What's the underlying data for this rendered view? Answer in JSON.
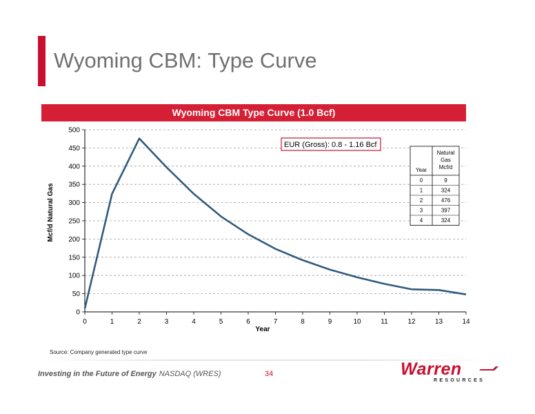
{
  "slide": {
    "title": "Wyoming CBM: Type Curve",
    "source_note": "Source: Company generated type curve",
    "footer": {
      "tagline": "Investing in the Future of Energy",
      "ticker": "NASDAQ (WRES)",
      "page_number": "34",
      "logo_word": "Warren",
      "logo_sub": "RESOURCES"
    },
    "accent_color": "#c8102e"
  },
  "chart_data": {
    "type": "line",
    "title": "Wyoming CBM Type Curve (1.0 Bcf)",
    "xlabel": "Year",
    "ylabel": "Mcf/d Natural Gas",
    "xlim": [
      0,
      14
    ],
    "ylim": [
      0,
      500
    ],
    "xticks": [
      "0",
      "1",
      "2",
      "3",
      "4",
      "5",
      "6",
      "7",
      "8",
      "9",
      "10",
      "11",
      "12",
      "13",
      "14"
    ],
    "yticks": [
      "0",
      "50",
      "100",
      "150",
      "200",
      "250",
      "300",
      "350",
      "400",
      "450",
      "500"
    ],
    "grid": true,
    "series_color": "#2e5a7e",
    "series": [
      {
        "x": [
          0,
          1,
          2,
          3,
          4,
          5,
          6,
          7,
          8,
          9,
          10,
          11,
          12,
          13,
          14
        ],
        "values": [
          9,
          324,
          476,
          397,
          324,
          262,
          213,
          173,
          142,
          116,
          95,
          77,
          62,
          60,
          48
        ]
      }
    ],
    "annotation": "EUR (Gross): 0.8 - 1.16 Bcf",
    "table": {
      "headers": [
        "Year",
        "Natural Gas Mcf/d"
      ],
      "rows": [
        [
          "0",
          "9"
        ],
        [
          "1",
          "324"
        ],
        [
          "2",
          "476"
        ],
        [
          "3",
          "397"
        ],
        [
          "4",
          "324"
        ]
      ]
    }
  }
}
